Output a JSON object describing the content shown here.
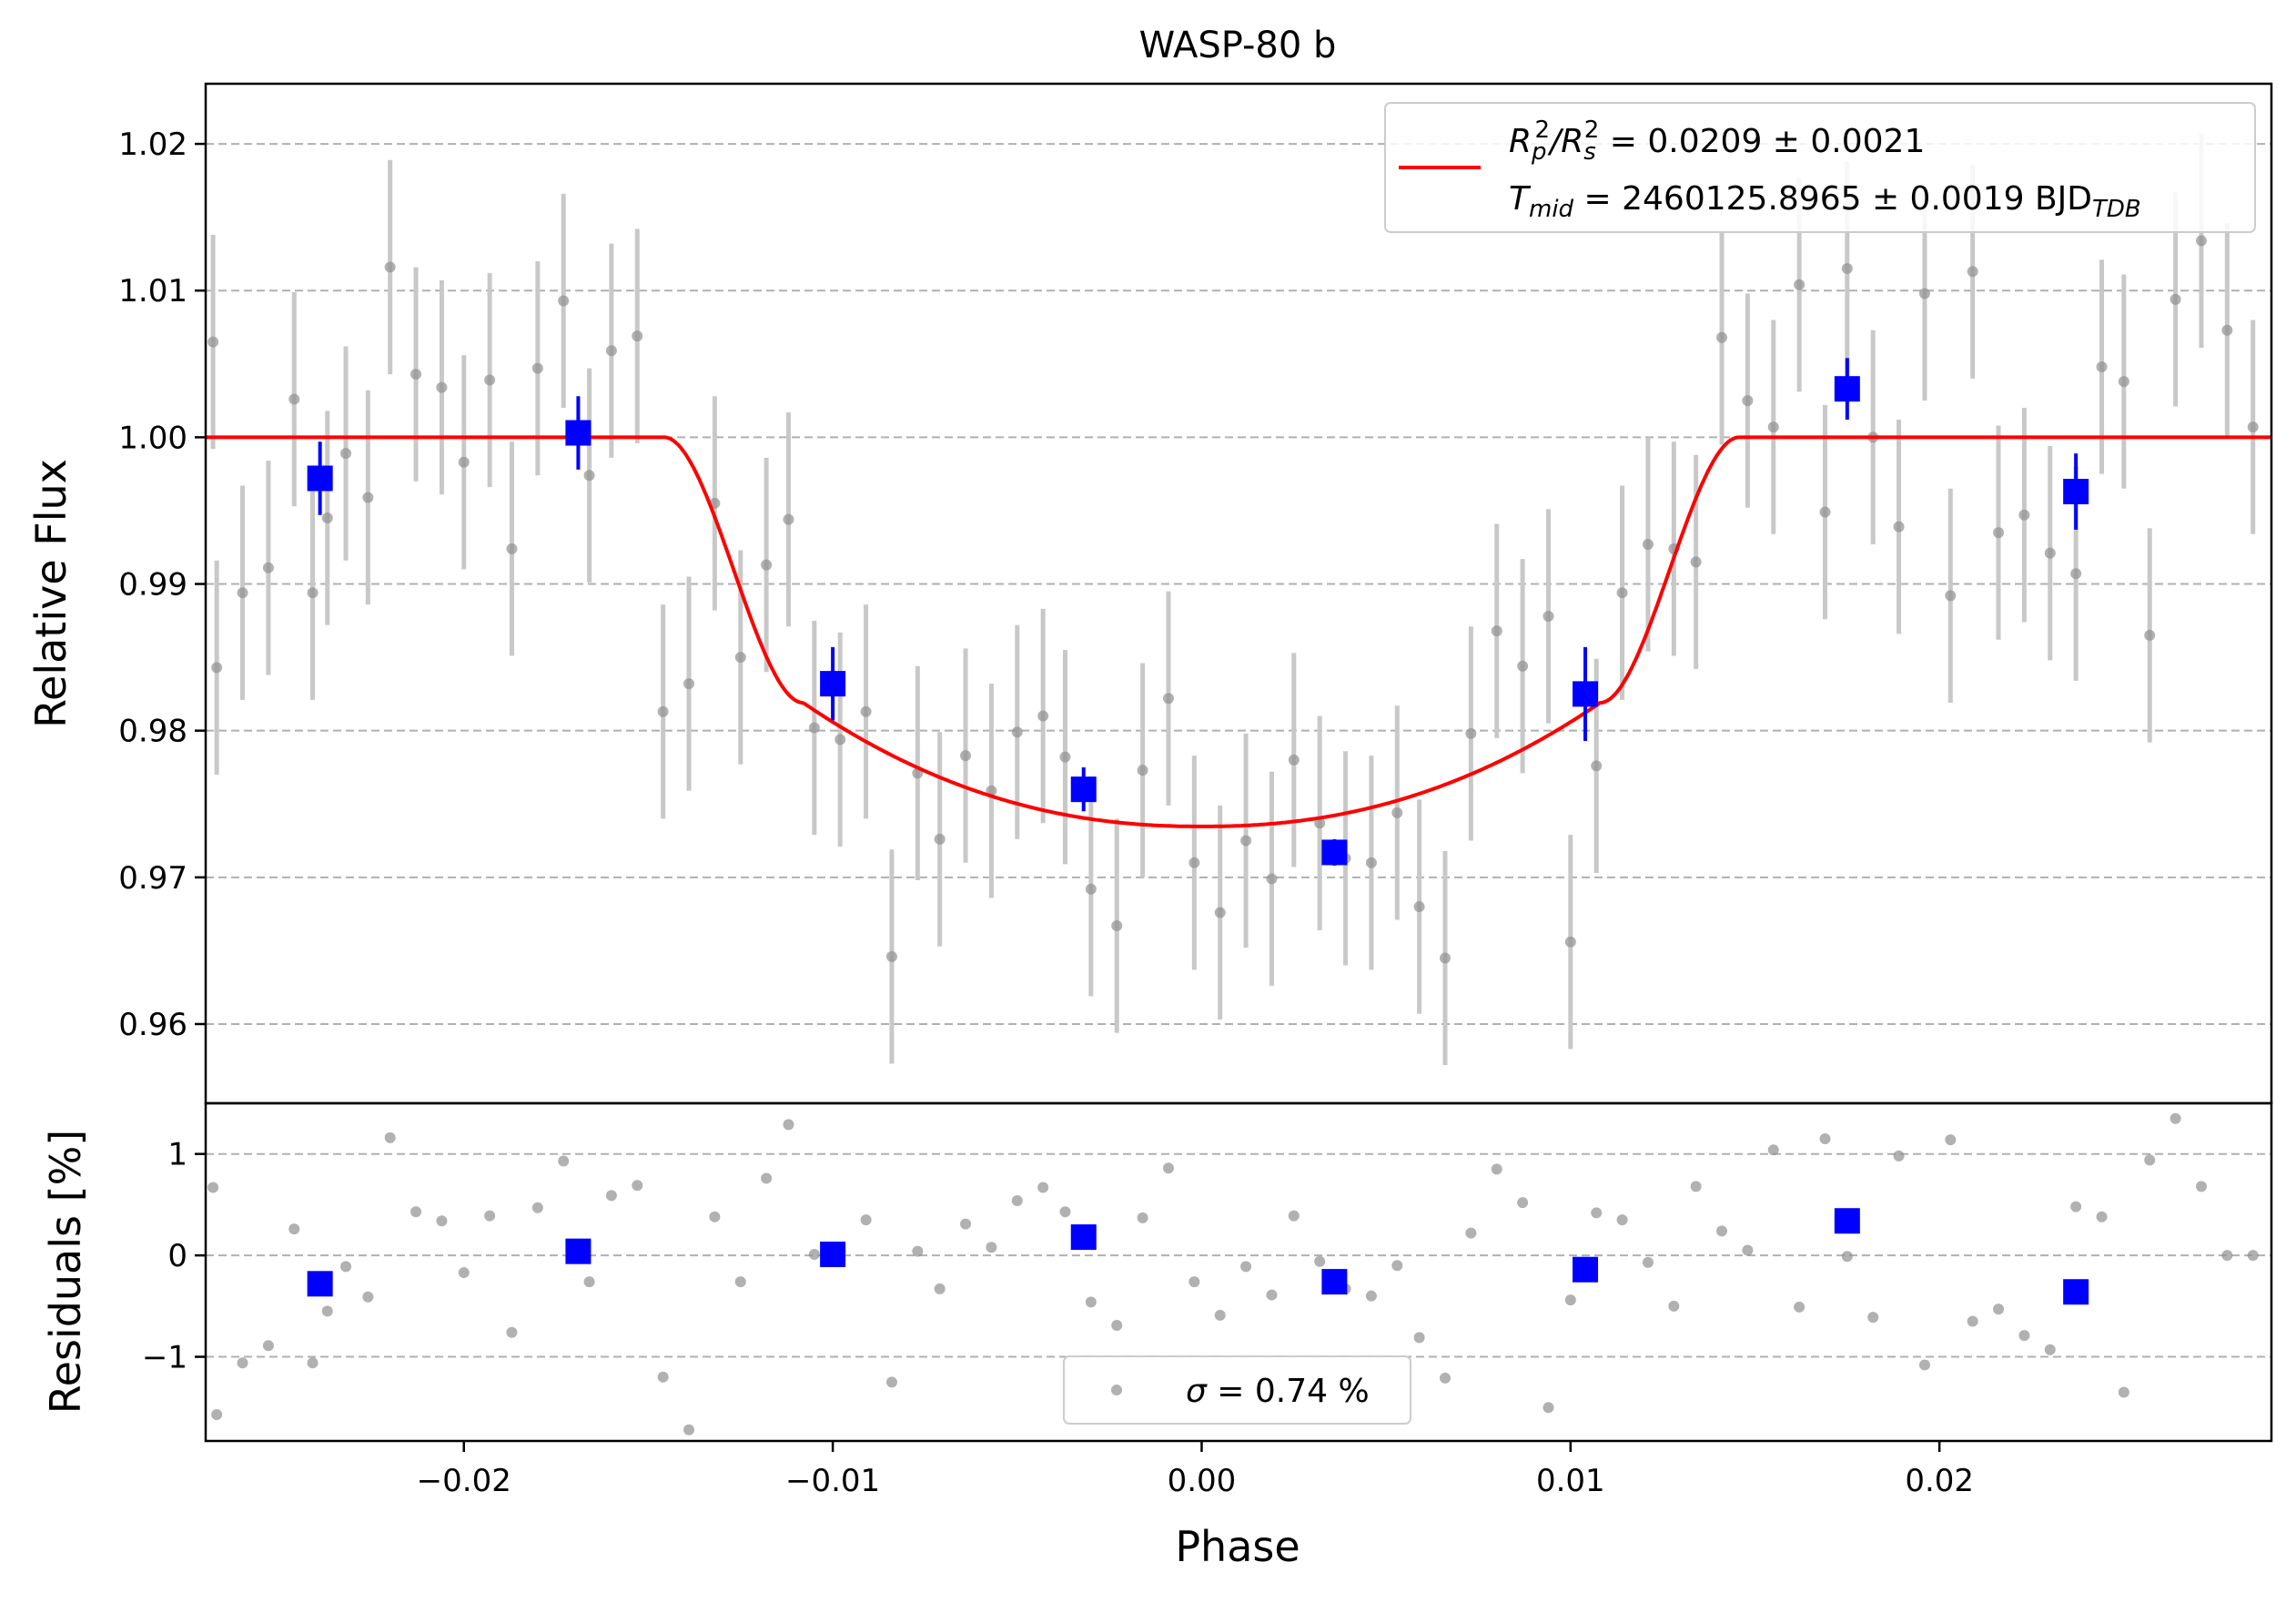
{
  "chart_data": {
    "type": "scatter",
    "title": "WASP-80 b",
    "xlabel": "Phase",
    "xlim": [
      -0.027,
      0.029
    ],
    "x_ticks": [
      -0.02,
      -0.01,
      0.0,
      0.01,
      0.02
    ],
    "x_tick_labels": [
      "−0.02",
      "−0.01",
      "0.00",
      "0.01",
      "0.02"
    ],
    "grid": "horizontal dashed",
    "colors": {
      "raw": "#909090",
      "error_bar": "#c8c8c8",
      "binned": "#0000ff",
      "model": "#ff0000",
      "grid": "#b0b0b0"
    },
    "top_panel": {
      "ylabel": "Relative Flux",
      "ylim": [
        0.9546,
        1.0241
      ],
      "y_ticks": [
        0.96,
        0.97,
        0.98,
        0.99,
        1.0,
        1.01,
        1.02
      ],
      "y_tick_labels": [
        "0.96",
        "0.97",
        "0.98",
        "0.99",
        "1.00",
        "1.01",
        "1.02"
      ],
      "legend": {
        "placement": "top-right",
        "line1": {
          "base": "R",
          "s1": "p",
          "p1": "2",
          "mid": "/R",
          "s2": "s",
          "p2": "2",
          "rest": " = 0.0209 ± 0.0021"
        },
        "line2": {
          "base": "T",
          "s1": "mid",
          "rest": " = 2460125.8965 ± 0.0019 BJD",
          "s2": "TDB"
        }
      },
      "model": {
        "name": "transit model",
        "baseline": 1.0,
        "depth_center": 0.97347,
        "t1": -0.01457,
        "t2": -0.0108,
        "t3": 0.0108,
        "t4": 0.01457,
        "edge_flux": 0.9819
      },
      "raw_points": {
        "x": [
          -0.0268,
          -0.0267,
          -0.026,
          -0.0253,
          -0.0246,
          -0.0241,
          -0.0237,
          -0.0232,
          -0.0226,
          -0.022,
          -0.0213,
          -0.0206,
          -0.02,
          -0.0193,
          -0.0187,
          -0.018,
          -0.0173,
          -0.0166,
          -0.016,
          -0.0153,
          -0.0146,
          -0.0139,
          -0.0132,
          -0.0125,
          -0.0118,
          -0.0112,
          -0.0105,
          -0.0098,
          -0.0091,
          -0.0084,
          -0.0077,
          -0.0071,
          -0.0064,
          -0.0057,
          -0.005,
          -0.0043,
          -0.0037,
          -0.003,
          -0.0023,
          -0.0016,
          -0.0009,
          -0.0002,
          0.0005,
          0.0012,
          0.0019,
          0.0025,
          0.0032,
          0.0039,
          0.0046,
          0.0053,
          0.0059,
          0.0066,
          0.0073,
          0.008,
          0.0087,
          0.0094,
          0.01,
          0.0107,
          0.0114,
          0.0121,
          0.0128,
          0.0134,
          0.0141,
          0.0148,
          0.0155,
          0.0162,
          0.0169,
          0.0175,
          0.0182,
          0.0189,
          0.0196,
          0.0203,
          0.0209,
          0.0216,
          0.0223,
          0.023,
          0.0237,
          0.0244,
          0.025,
          0.0257,
          0.0264,
          0.0271,
          0.0278,
          0.0285
        ],
        "y": [
          1.0065,
          0.9843,
          0.9894,
          0.9911,
          1.0026,
          0.9894,
          0.9945,
          0.9989,
          0.9959,
          1.0116,
          1.0043,
          1.0034,
          0.9983,
          1.0039,
          0.9924,
          1.0047,
          1.0093,
          0.9974,
          1.0059,
          1.0069,
          0.9813,
          0.9832,
          0.9955,
          0.985,
          0.9913,
          0.9944,
          0.9802,
          0.9794,
          0.9813,
          0.9646,
          0.9771,
          0.9726,
          0.9783,
          0.9759,
          0.9799,
          0.981,
          0.9782,
          0.9692,
          0.9667,
          0.9773,
          0.9822,
          0.971,
          0.9676,
          0.9725,
          0.9699,
          0.978,
          0.9737,
          0.9713,
          0.971,
          0.9744,
          0.968,
          0.9645,
          0.9798,
          0.9868,
          0.9844,
          0.9878,
          0.9656,
          0.9776,
          0.9894,
          0.9927,
          0.9924,
          0.9915,
          1.0068,
          1.0025,
          1.0007,
          1.0104,
          0.9949,
          1.0115,
          1.0,
          0.9939,
          1.0098,
          0.9892,
          1.0113,
          0.9935,
          0.9947,
          0.9921,
          0.9907,
          1.0048,
          1.0038,
          0.9865,
          1.0094,
          1.0134,
          1.0073,
          1.0007
        ],
        "err": [
          0.0073,
          0.0073,
          0.0073,
          0.0073,
          0.0073,
          0.0073,
          0.0073,
          0.0073,
          0.0073,
          0.0073,
          0.0073,
          0.0073,
          0.0073,
          0.0073,
          0.0073,
          0.0073,
          0.0073,
          0.0073,
          0.0073,
          0.0073,
          0.0073,
          0.0073,
          0.0073,
          0.0073,
          0.0073,
          0.0073,
          0.0073,
          0.0073,
          0.0073,
          0.0073,
          0.0073,
          0.0073,
          0.0073,
          0.0073,
          0.0073,
          0.0073,
          0.0073,
          0.0073,
          0.0073,
          0.0073,
          0.0073,
          0.0073,
          0.0073,
          0.0073,
          0.0073,
          0.0073,
          0.0073,
          0.0073,
          0.0073,
          0.0073,
          0.0073,
          0.0073,
          0.0073,
          0.0073,
          0.0073,
          0.0073,
          0.0073,
          0.0073,
          0.0073,
          0.0073,
          0.0073,
          0.0073,
          0.0073,
          0.0073,
          0.0073,
          0.0073,
          0.0073,
          0.0073,
          0.0073,
          0.0073,
          0.0073,
          0.0073,
          0.0073,
          0.0073,
          0.0073,
          0.0073,
          0.0073,
          0.0073,
          0.0073,
          0.0073,
          0.0073,
          0.0073,
          0.0073,
          0.0073
        ]
      },
      "binned_points": {
        "x": [
          -0.0239,
          -0.0169,
          -0.01,
          -0.0032,
          0.0036,
          0.0104,
          0.0175,
          0.0237
        ],
        "y": [
          0.9972,
          1.0003,
          0.9832,
          0.976,
          0.9717,
          0.9825,
          1.0033,
          0.9963
        ],
        "err": [
          0.0025,
          0.0025,
          0.0025,
          0.0015,
          0.0009,
          0.0032,
          0.0021,
          0.0026
        ]
      }
    },
    "bottom_panel": {
      "ylabel": "Residuals [%]",
      "ylim": [
        -1.83,
        1.5
      ],
      "y_ticks": [
        -1,
        0,
        1
      ],
      "y_tick_labels": [
        "−1",
        "0",
        "1"
      ],
      "legend": {
        "placement": "bottom-center",
        "text_prefix": "σ",
        "text": " = 0.74 %"
      },
      "raw_residuals": [
        0.67,
        -1.57,
        -1.06,
        -0.89,
        0.26,
        -1.06,
        -0.55,
        -0.11,
        -0.41,
        1.16,
        0.43,
        0.34,
        -0.17,
        0.39,
        -0.76,
        0.47,
        0.93,
        -0.26,
        0.59,
        0.69,
        -1.2,
        -1.72,
        0.38,
        -0.26,
        0.76,
        1.29,
        0.01,
        0.04,
        0.35,
        -1.25,
        0.04,
        -0.33,
        0.31,
        0.08,
        0.54,
        0.67,
        0.43,
        -0.46,
        -0.69,
        0.37,
        0.86,
        -0.26,
        -0.59,
        -0.11,
        -0.39,
        0.39,
        -0.06,
        -0.33,
        -0.4,
        -0.1,
        -0.81,
        -1.21,
        0.22,
        0.85,
        0.52,
        -1.5,
        -0.44,
        0.42,
        0.35,
        -0.07,
        -0.5,
        0.68,
        0.24,
        0.05,
        1.04,
        -0.51,
        1.15,
        -0.01,
        -0.61,
        0.98,
        -1.08,
        1.14,
        -0.65,
        -0.53,
        -0.79,
        -0.93,
        0.48,
        0.38,
        -1.35,
        0.94,
        1.35,
        0.68,
        0.0,
        0.0
      ],
      "binned_residuals": [
        -0.28,
        0.04,
        0.01,
        0.18,
        -0.26,
        -0.14,
        0.34,
        -0.36
      ]
    }
  }
}
